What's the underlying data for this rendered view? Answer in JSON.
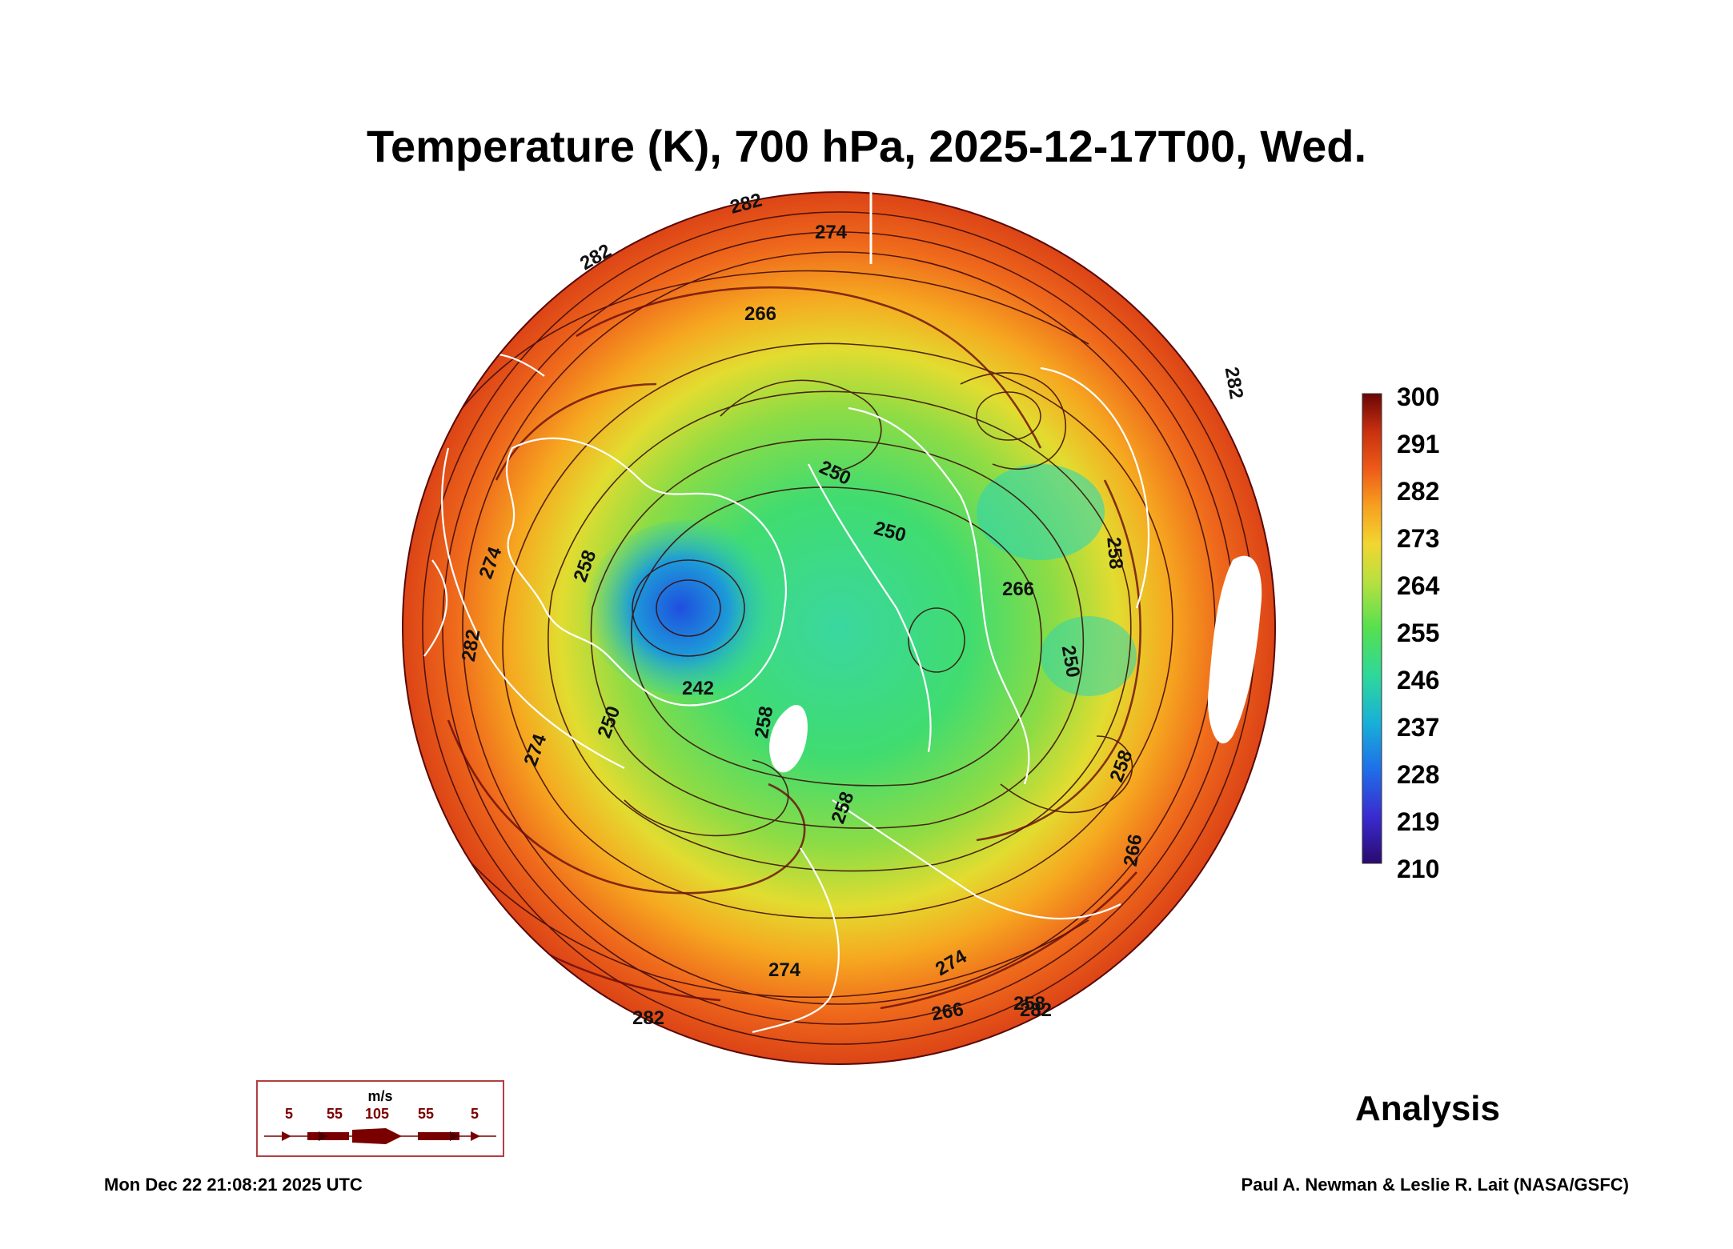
{
  "title": "Temperature (K), 700 hPa, 2025-12-17T00, Wed.",
  "colorbar": {
    "labels": [
      "300",
      "291",
      "282",
      "273",
      "264",
      "255",
      "246",
      "237",
      "228",
      "219",
      "210"
    ],
    "min": 210,
    "max": 300,
    "colors": [
      "#2a0a6e",
      "#3a2bd0",
      "#1f6fe8",
      "#18b0d8",
      "#2fd89a",
      "#55e050",
      "#b8e040",
      "#f2d630",
      "#f7a020",
      "#ee5a18",
      "#d83a14",
      "#7a0a0a"
    ]
  },
  "contour_labels": [
    "282",
    "274",
    "282",
    "266",
    "282",
    "250",
    "250",
    "258",
    "274",
    "258",
    "242",
    "250",
    "258",
    "266",
    "258",
    "250",
    "258",
    "266",
    "274",
    "282",
    "274",
    "282",
    "266",
    "258",
    "274",
    "282"
  ],
  "wind_legend": {
    "unit": "m/s",
    "values": [
      "5",
      "55",
      "105",
      "55",
      "5"
    ]
  },
  "analysis_label": "Analysis",
  "timestamp": "Mon Dec 22 21:08:21 2025 UTC",
  "credit": "Paul A. Newman & Leslie R. Lait (NASA/GSFC)"
}
